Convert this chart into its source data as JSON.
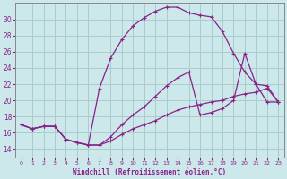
{
  "bg_color": "#cce8ea",
  "grid_color": "#aacccc",
  "line_color": "#882288",
  "xlabel": "Windchill (Refroidissement éolien,°C)",
  "xlim": [
    -0.5,
    23.5
  ],
  "ylim": [
    13.0,
    32.0
  ],
  "xticks": [
    0,
    1,
    2,
    3,
    4,
    5,
    6,
    7,
    8,
    9,
    10,
    11,
    12,
    13,
    14,
    15,
    16,
    17,
    18,
    19,
    20,
    21,
    22,
    23
  ],
  "yticks": [
    14,
    16,
    18,
    20,
    22,
    24,
    26,
    28,
    30
  ],
  "line1_x": [
    0,
    1,
    2,
    3,
    4,
    5,
    6,
    7,
    8,
    9,
    10,
    11,
    12,
    13,
    14,
    15,
    16,
    17,
    18,
    19,
    20,
    21,
    22,
    23
  ],
  "line1_y": [
    17.0,
    16.5,
    16.8,
    16.8,
    15.2,
    14.8,
    14.5,
    21.5,
    25.2,
    27.5,
    29.2,
    30.2,
    31.0,
    31.5,
    31.5,
    30.8,
    30.5,
    30.3,
    28.5,
    25.8,
    23.5,
    22.0,
    19.8,
    19.8
  ],
  "line2_x": [
    0,
    1,
    2,
    3,
    4,
    5,
    6,
    7,
    8,
    9,
    10,
    11,
    12,
    13,
    14,
    15,
    16,
    17,
    18,
    19,
    20,
    21,
    22,
    23
  ],
  "line2_y": [
    17.0,
    16.5,
    16.8,
    16.8,
    15.2,
    14.8,
    14.5,
    14.5,
    15.5,
    17.0,
    18.2,
    19.2,
    20.5,
    21.8,
    22.8,
    23.5,
    18.2,
    18.5,
    19.0,
    20.0,
    25.8,
    22.0,
    21.8,
    19.8
  ],
  "line3_x": [
    0,
    1,
    2,
    3,
    4,
    5,
    6,
    7,
    8,
    9,
    10,
    11,
    12,
    13,
    14,
    15,
    16,
    17,
    18,
    19,
    20,
    21,
    22,
    23
  ],
  "line3_y": [
    17.0,
    16.5,
    16.8,
    16.8,
    15.2,
    14.8,
    14.5,
    14.5,
    15.0,
    15.8,
    16.5,
    17.0,
    17.5,
    18.2,
    18.8,
    19.2,
    19.5,
    19.8,
    20.0,
    20.5,
    20.8,
    21.0,
    21.5,
    19.8
  ]
}
